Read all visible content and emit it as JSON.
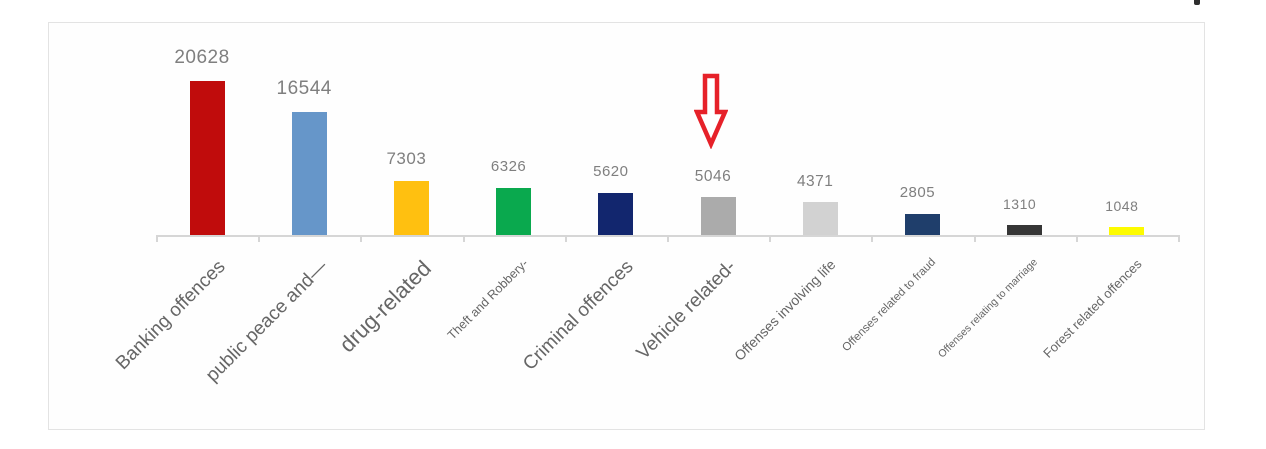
{
  "chart_data": {
    "type": "bar",
    "categories": [
      "Banking offences",
      "public peace and—",
      "drug-related",
      "Theft and Robbery-",
      "Criminal offences",
      "Vehicle related-",
      "Offenses involving life",
      "Offenses related to fraud",
      "Offenses relating to marriage",
      "Forest related offences"
    ],
    "values": [
      20628,
      16544,
      7303,
      6326,
      5620,
      5046,
      4371,
      2805,
      1310,
      1048
    ],
    "bar_colors": [
      "#c00c0c",
      "#6696c9",
      "#ffc010",
      "#0aa94e",
      "#12266e",
      "#ababab",
      "#d2d2d2",
      "#1f3e6b",
      "#363636",
      "#fdfb00"
    ],
    "value_label_color": "#7f7f7f",
    "category_label_color": "#666666",
    "axis_color": "#d6d6d6",
    "title": "",
    "xlabel": "",
    "ylabel": "",
    "ylim": [
      0,
      22000
    ],
    "grid": false,
    "legend": false,
    "annotation": {
      "shape": "down-arrow-outline",
      "color": "#e62129",
      "points_to_category": "Vehicle related-",
      "points_to_value": 5046
    }
  }
}
